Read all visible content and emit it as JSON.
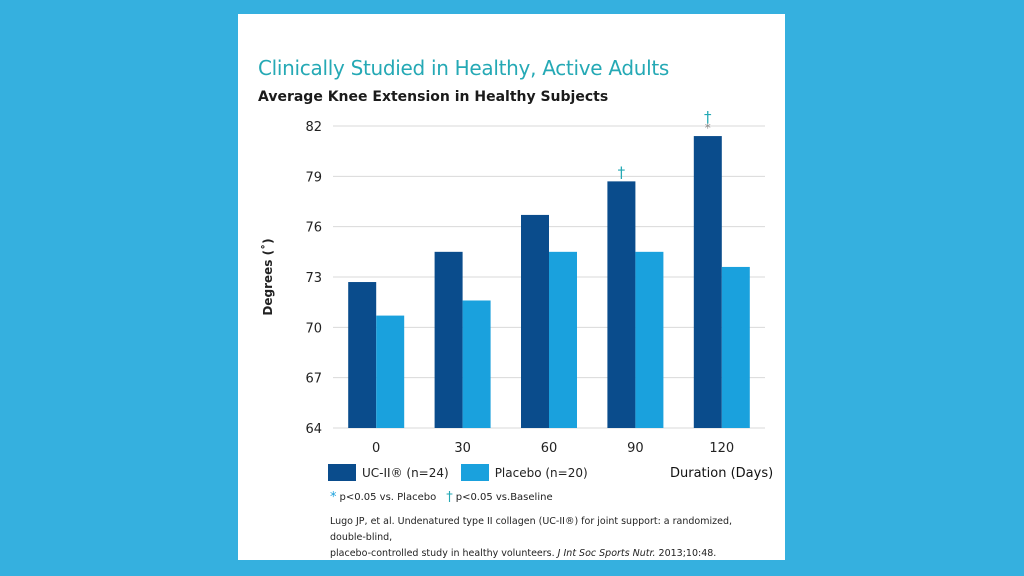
{
  "header": {
    "title": "Clinically Studied in Healthy, Active Adults",
    "subtitle": "Average Knee Extension in Healthy Subjects"
  },
  "legend": {
    "uc2_label": "UC-II® (n=24)",
    "placebo_label": "Placebo (n=20)",
    "duration_label": "Duration (Days)"
  },
  "significance": {
    "asterisk_symbol": "*",
    "asterisk_text": "p<0.05 vs. Placebo",
    "dagger_symbol": "†",
    "dagger_text": "p<0.05 vs.Baseline"
  },
  "citation": {
    "line1": "Lugo JP, et al. Undenatured type II collagen (UC-II®) for joint support: a randomized, double-blind,",
    "line2_prefix": "placebo-controlled study in healthy volunteers. ",
    "journal": "J Int Soc Sports Nutr.",
    "line2_suffix": " 2013;10:48."
  },
  "colors": {
    "uc2": "#0a4c8c",
    "placebo": "#1aa1dd",
    "title": "#25a9b5",
    "grid": "#d9d9d9",
    "background": "#35b0df"
  },
  "chart_data": {
    "type": "bar",
    "ylabel": "Degrees (˚)",
    "xlabel": "Duration (Days)",
    "ylim": [
      64,
      82
    ],
    "yticks": [
      64,
      67,
      70,
      73,
      76,
      79,
      82
    ],
    "categories": [
      "0",
      "30",
      "60",
      "90",
      "120"
    ],
    "series": [
      {
        "name": "UC-II® (n=24)",
        "values": [
          72.7,
          74.5,
          76.7,
          78.7,
          81.4
        ]
      },
      {
        "name": "Placebo (n=20)",
        "values": [
          70.7,
          71.6,
          74.5,
          74.5,
          73.6
        ]
      }
    ],
    "annotations": [
      {
        "category": "90",
        "series": "UC-II® (n=24)",
        "symbols": [
          "†"
        ]
      },
      {
        "category": "120",
        "series": "UC-II® (n=24)",
        "symbols": [
          "†",
          "*"
        ]
      }
    ],
    "grid": true
  }
}
